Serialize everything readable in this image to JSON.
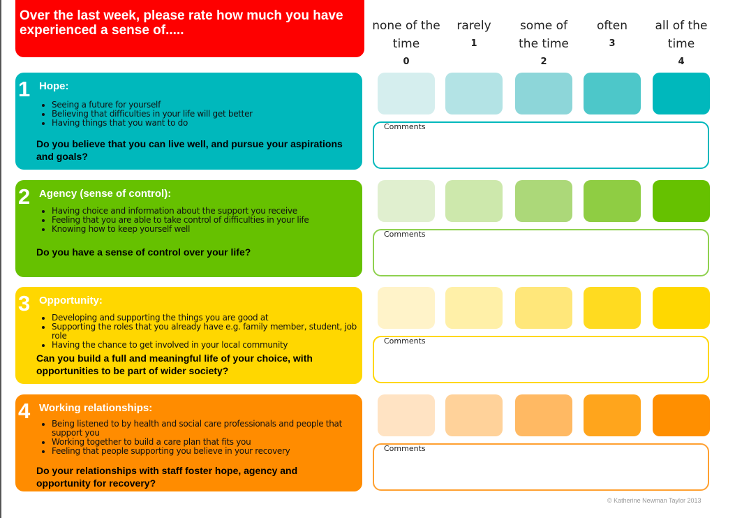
{
  "header": {
    "title": "Over the last week, please rate how much you have experienced a sense of....."
  },
  "scale": [
    {
      "label": "none of the time",
      "value": "0"
    },
    {
      "label": "rarely",
      "value": "1"
    },
    {
      "label": "some of the time",
      "value": "2"
    },
    {
      "label": "often",
      "value": "3"
    },
    {
      "label": "all of the time",
      "value": "4"
    }
  ],
  "comments_label": "Comments",
  "sections": [
    {
      "number": "1",
      "title": "Hope:",
      "bullets": [
        "Seeing a future for yourself",
        "Believing that difficulties in your life will get better",
        "Having things that you want to do"
      ],
      "question": "Do you believe that you can live well, and pursue your aspirations and goals?",
      "color": "#00b8bc",
      "border": "#00b8bc",
      "shades": [
        "#d5eeee",
        "#b3e3e5",
        "#8dd6d9",
        "#4dc7c9",
        "#00b8bc"
      ]
    },
    {
      "number": "2",
      "title": "Agency (sense of control):",
      "bullets": [
        "Having choice and information about the support you receive",
        "Feeling that you are able to take control of difficulties in your life",
        "Knowing how to keep yourself well"
      ],
      "question": "Do you have a sense of control over your life?",
      "color": "#66c100",
      "border": "#8fd14f",
      "shades": [
        "#e0efcf",
        "#cde8ac",
        "#acd879",
        "#8fcd43",
        "#66c100"
      ]
    },
    {
      "number": "3",
      "title": "Opportunity:",
      "bullets": [
        "Developing and supporting the things you are good at",
        "Supporting the roles that you already have e.g. family member, student, job role",
        "Having the chance to get involved in your local community"
      ],
      "question": "Can you build a full and meaningful life of your choice, with opportunities to be part of wider society?",
      "color": "#ffd700",
      "border": "#ffd700",
      "shades": [
        "#fff3c9",
        "#fff0a8",
        "#ffe77a",
        "#ffdb20",
        "#ffd800"
      ]
    },
    {
      "number": "4",
      "title": "Working relationships:",
      "bullets": [
        "Being listened to by health and social care professionals and people that support you",
        "Working together to build a care plan that fits you",
        "Feeling that people supporting you believe in your recovery"
      ],
      "question": "Do your relationships with staff foster hope, agency and opportunity for recovery?",
      "color": "#ff8c00",
      "border": "#ffa030",
      "shades": [
        "#ffe3c3",
        "#ffd29a",
        "#ffb963",
        "#ffa51c",
        "#ff8f00"
      ]
    }
  ],
  "footer": {
    "copyright": "© Katherine Newman Taylor 2013"
  }
}
